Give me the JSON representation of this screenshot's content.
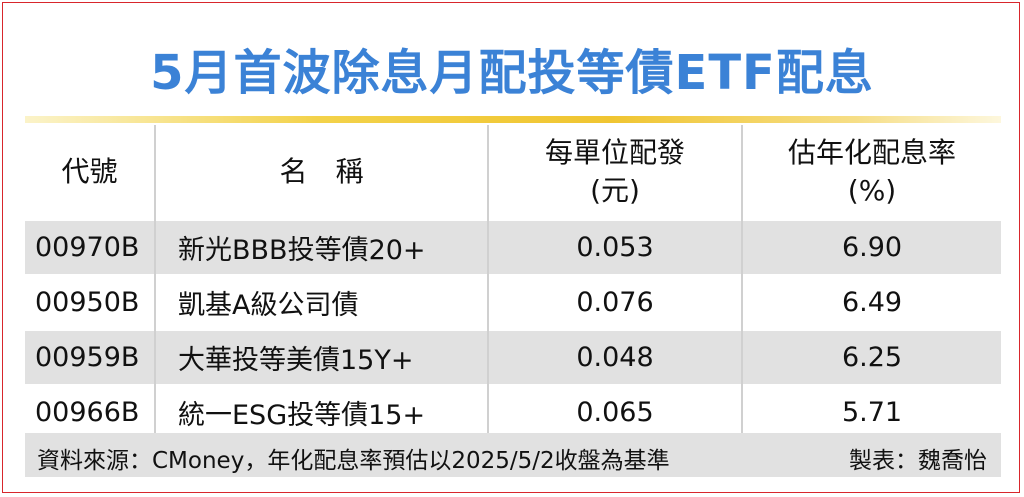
{
  "title": "5月首波除息月配投等債ETF配息",
  "columns": {
    "code": "代號",
    "name": "名　稱",
    "dividend_line1": "每單位配發",
    "dividend_line2": "(元)",
    "yield_line1": "估年化配息率",
    "yield_line2": "(%)"
  },
  "rows": [
    {
      "code": "00970B",
      "name": "新光BBB投等債20+",
      "dividend": "0.053",
      "yield": "6.90"
    },
    {
      "code": "00950B",
      "name": "凱基A級公司債",
      "dividend": "0.076",
      "yield": "6.49"
    },
    {
      "code": "00959B",
      "name": "大華投等美債15Y+",
      "dividend": "0.048",
      "yield": "6.25"
    },
    {
      "code": "00966B",
      "name": "統一ESG投等債15+",
      "dividend": "0.065",
      "yield": "5.71"
    }
  ],
  "footer": {
    "source": "資料來源：CMoney，年化配息率預估以2025/5/2收盤為基準",
    "credit": "製表：魏喬怡"
  },
  "colors": {
    "title": "#3b82d6",
    "frame": "#d8262c",
    "stripe": "#e1e1e1",
    "rule": "#f0c531"
  }
}
